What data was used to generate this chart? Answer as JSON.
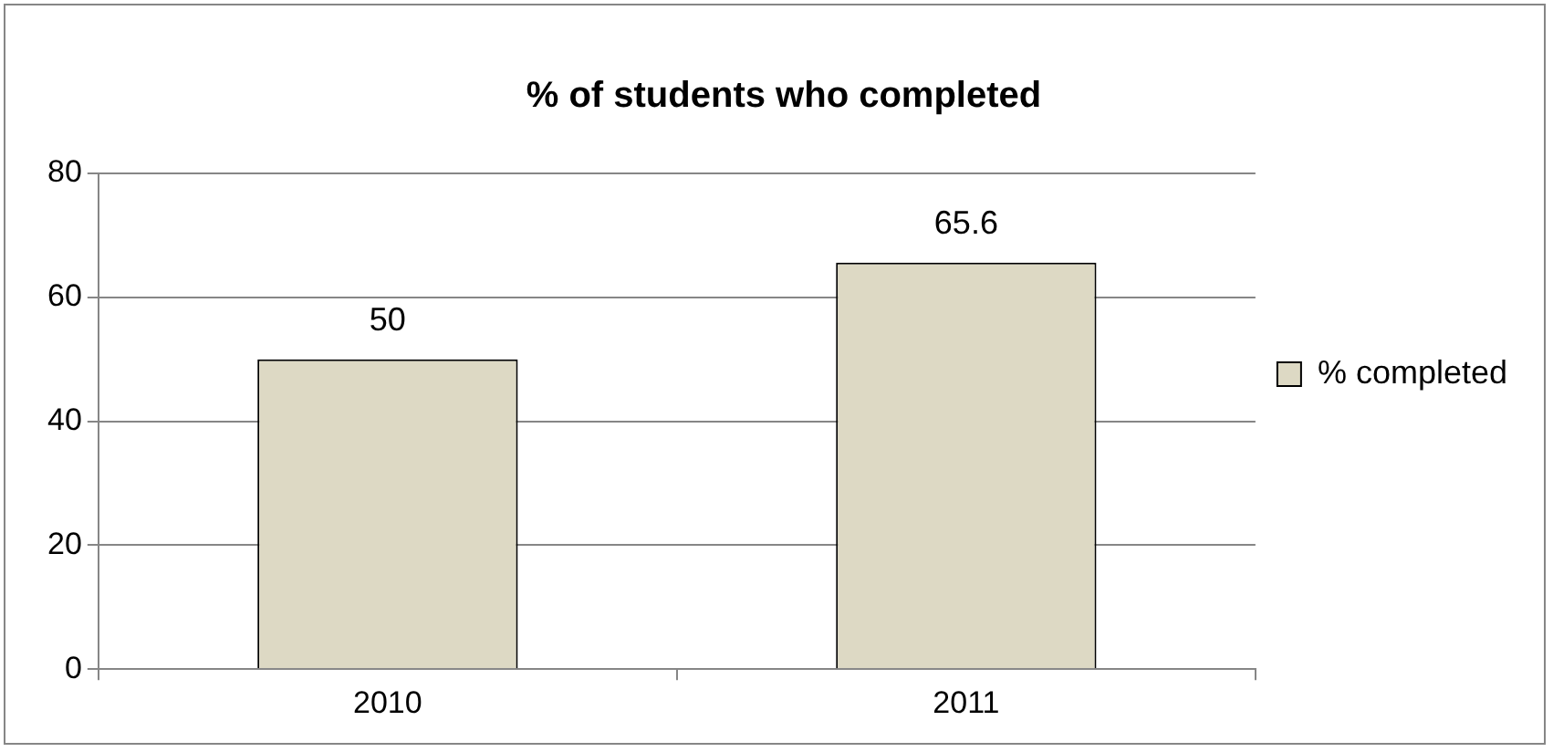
{
  "chart_data": {
    "type": "bar",
    "title": "% of students who completed",
    "categories": [
      "2010",
      "2011"
    ],
    "series": [
      {
        "name": "% completed",
        "color": "#ddd9c4",
        "values": [
          50,
          65.6
        ]
      }
    ],
    "ylim": [
      0,
      80
    ],
    "yticks": [
      0,
      20,
      40,
      60,
      80
    ],
    "grid": "y",
    "legend": "right",
    "data_labels": true
  }
}
